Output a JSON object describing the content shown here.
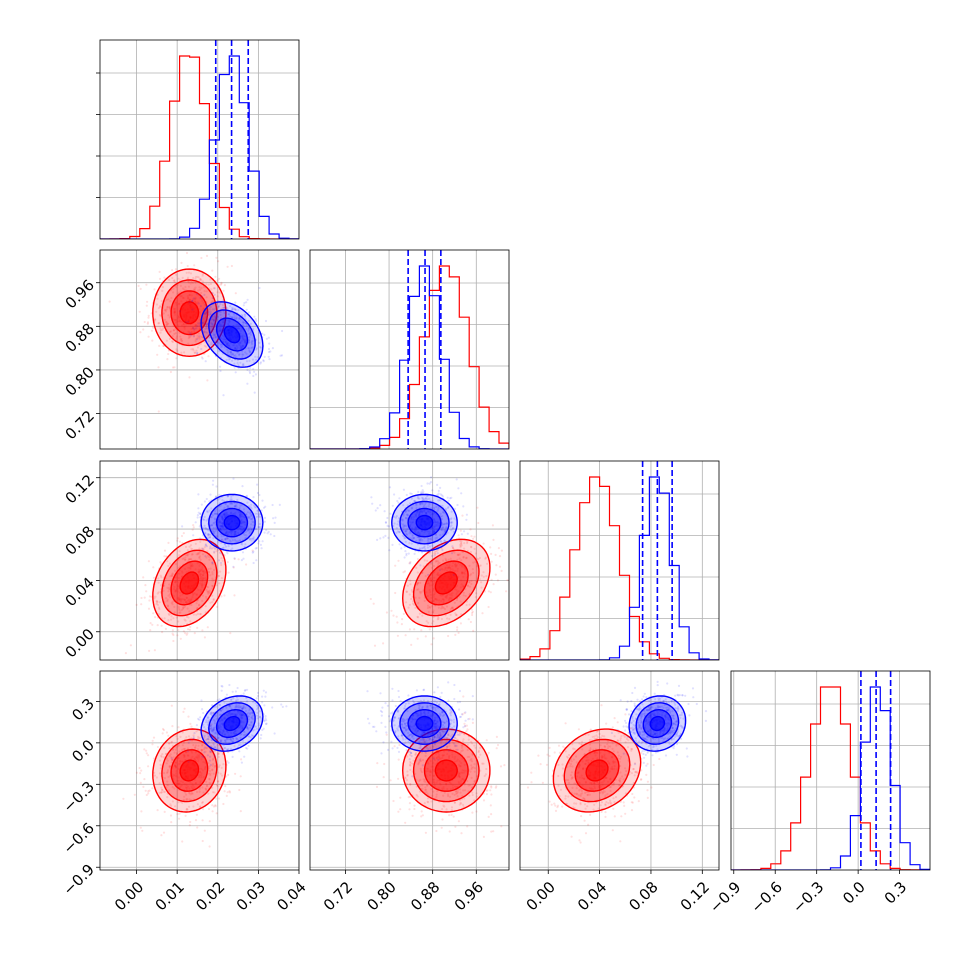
{
  "colors": {
    "red": "#ff0000",
    "blue": "#0000ff",
    "grid": "#b0b0b0"
  },
  "chart_data": {
    "type": "corner",
    "grid": true,
    "legend": "none",
    "parameters": [
      {
        "index": 0,
        "range": [
          -0.009,
          0.04
        ],
        "ticks": [
          0.0,
          0.01,
          0.02,
          0.03,
          0.04
        ],
        "tick_labels": [
          "0.00",
          "0.01",
          "0.02",
          "0.03",
          "0.04"
        ]
      },
      {
        "index": 1,
        "range": [
          0.655,
          1.02
        ],
        "ticks": [
          0.72,
          0.8,
          0.88,
          0.96
        ],
        "tick_labels": [
          "0.72",
          "0.80",
          "0.88",
          "0.96"
        ]
      },
      {
        "index": 2,
        "range": [
          -0.022,
          0.133
        ],
        "ticks": [
          0.0,
          0.04,
          0.08,
          0.12
        ],
        "tick_labels": [
          "0.00",
          "0.04",
          "0.08",
          "0.12"
        ]
      },
      {
        "index": 3,
        "range": [
          -0.92,
          0.52
        ],
        "ticks": [
          -0.9,
          -0.6,
          -0.3,
          0.0,
          0.3
        ],
        "tick_labels": [
          "−0.9",
          "−0.6",
          "−0.3",
          "0.0",
          "0.3"
        ]
      }
    ],
    "samples": [
      {
        "color": "red",
        "mean": [
          0.013,
          0.905,
          0.038,
          -0.2
        ],
        "sigma": [
          0.0045,
          0.04,
          0.017,
          0.15
        ],
        "corr": [
          [
            1,
            0,
            0.3,
            0.1
          ],
          [
            0,
            1,
            0.35,
            0
          ],
          [
            0.3,
            0.35,
            1,
            0.2
          ],
          [
            0.1,
            0,
            0.2,
            1
          ]
        ],
        "quantiles": []
      },
      {
        "color": "blue",
        "mean": [
          0.0235,
          0.865,
          0.085,
          0.14
        ],
        "sigma": [
          0.0038,
          0.03,
          0.011,
          0.1
        ],
        "corr": [
          [
            1,
            -0.35,
            0,
            0.25
          ],
          [
            -0.35,
            1,
            0,
            0
          ],
          [
            0,
            0,
            1,
            0.1
          ],
          [
            0.25,
            0,
            0.1,
            1
          ]
        ],
        "quantiles": [
          [
            0.0195,
            0.0234,
            0.0275
          ],
          [
            0.835,
            0.866,
            0.895
          ],
          [
            0.0735,
            0.085,
            0.0965
          ],
          [
            0.02,
            0.13,
            0.235
          ]
        ]
      }
    ]
  }
}
